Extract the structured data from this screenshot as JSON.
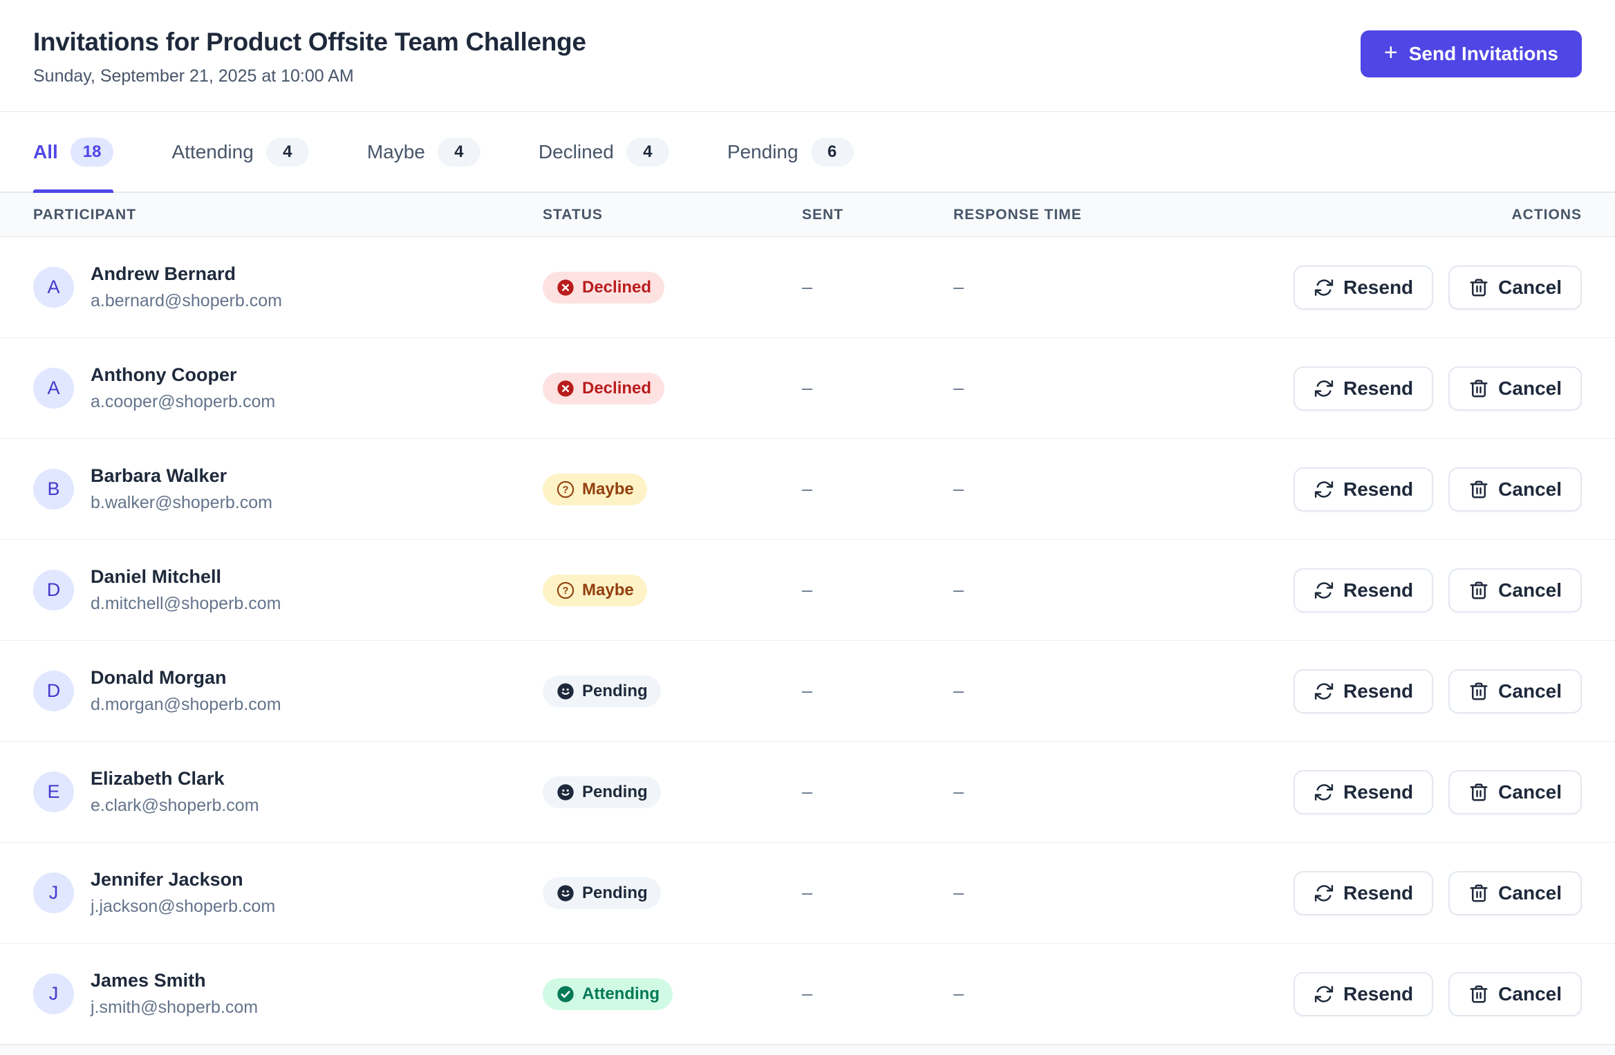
{
  "header": {
    "title": "Invitations for Product Offsite Team Challenge",
    "subtitle": "Sunday, September 21, 2025 at 10:00 AM",
    "send_invitations_label": "Send Invitations",
    "plus_glyph": "+"
  },
  "tabs": [
    {
      "id": "all",
      "label": "All",
      "count": "18",
      "active": true
    },
    {
      "id": "attending",
      "label": "Attending",
      "count": "4",
      "active": false
    },
    {
      "id": "maybe",
      "label": "Maybe",
      "count": "4",
      "active": false
    },
    {
      "id": "declined",
      "label": "Declined",
      "count": "4",
      "active": false
    },
    {
      "id": "pending",
      "label": "Pending",
      "count": "6",
      "active": false
    }
  ],
  "table": {
    "columns": [
      "Participant",
      "Status",
      "Sent",
      "Response time",
      "Actions"
    ],
    "action_labels": {
      "resend": "Resend",
      "cancel": "Cancel"
    },
    "empty_placeholder": "–",
    "rows": [
      {
        "initial": "A",
        "name": "Andrew Bernard",
        "email": "a.bernard@shoperb.com",
        "status": "Declined",
        "sent": "–",
        "response_time": "–"
      },
      {
        "initial": "A",
        "name": "Anthony Cooper",
        "email": "a.cooper@shoperb.com",
        "status": "Declined",
        "sent": "–",
        "response_time": "–"
      },
      {
        "initial": "B",
        "name": "Barbara Walker",
        "email": "b.walker@shoperb.com",
        "status": "Maybe",
        "sent": "–",
        "response_time": "–"
      },
      {
        "initial": "D",
        "name": "Daniel Mitchell",
        "email": "d.mitchell@shoperb.com",
        "status": "Maybe",
        "sent": "–",
        "response_time": "–"
      },
      {
        "initial": "D",
        "name": "Donald Morgan",
        "email": "d.morgan@shoperb.com",
        "status": "Pending",
        "sent": "–",
        "response_time": "–"
      },
      {
        "initial": "E",
        "name": "Elizabeth Clark",
        "email": "e.clark@shoperb.com",
        "status": "Pending",
        "sent": "–",
        "response_time": "–"
      },
      {
        "initial": "J",
        "name": "Jennifer Jackson",
        "email": "j.jackson@shoperb.com",
        "status": "Pending",
        "sent": "–",
        "response_time": "–"
      },
      {
        "initial": "J",
        "name": "James Smith",
        "email": "j.smith@shoperb.com",
        "status": "Attending",
        "sent": "–",
        "response_time": "–"
      }
    ]
  },
  "colors": {
    "accent": "#4F46E5",
    "accent_badge_bg": "#E0E7FF",
    "declined_bg": "#FEE2E2",
    "declined_text": "#B91C1C",
    "maybe_bg": "#FEF3C7",
    "maybe_text": "#92400E",
    "pending_bg": "#F1F5F9",
    "pending_text": "#1E293B",
    "attending_bg": "#D1FAE5",
    "attending_text": "#047857",
    "avatar_bg": "#E0E7FF",
    "avatar_text": "#4338CA"
  }
}
